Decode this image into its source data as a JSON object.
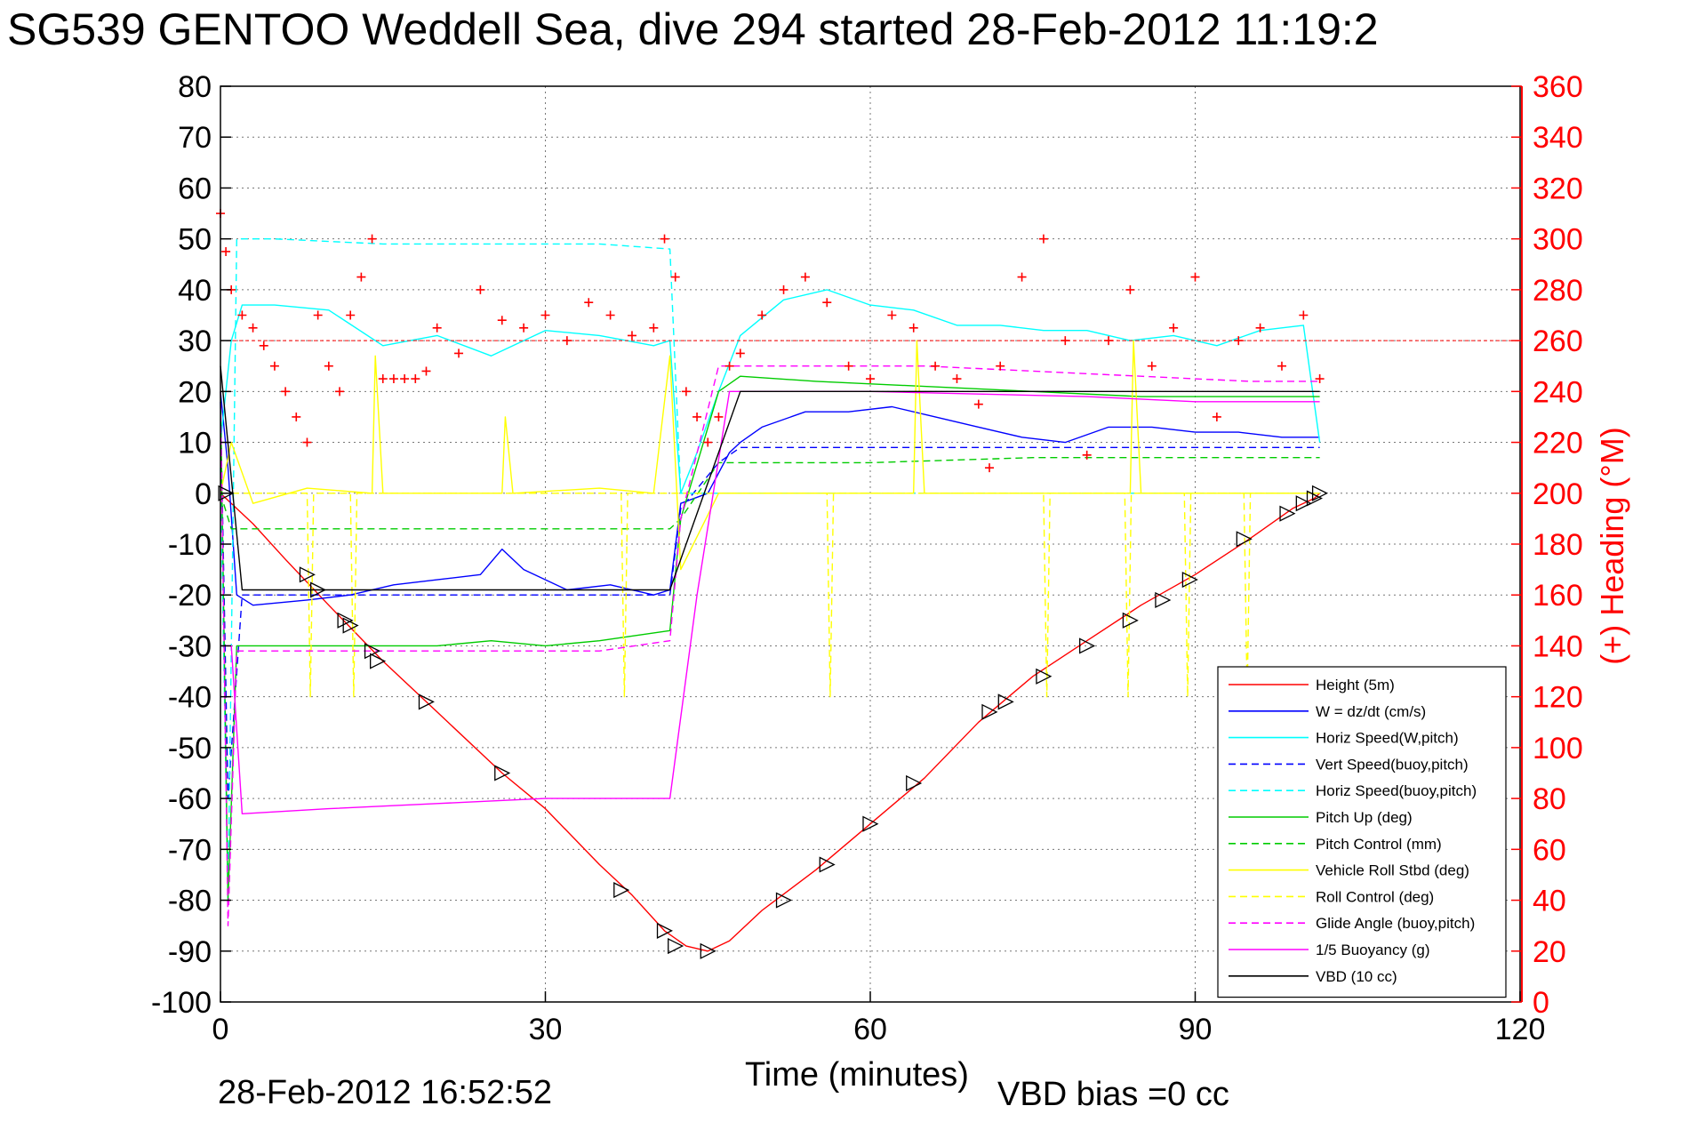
{
  "title": "SG539 GENTOO Weddell Sea, dive 294 started 28-Feb-2012 11:19:2",
  "footer": {
    "date": "28-Feb-2012 16:52:52",
    "vbd_bias": "VBD bias =0 cc"
  },
  "colors": {
    "height": "#ff0000",
    "w": "#0000ff",
    "horiz_speed": "#00ffff",
    "pitch": "#00cc00",
    "roll": "#ffff00",
    "glide": "#ff00ff",
    "vbd": "#000000",
    "heading": "#ff0000"
  },
  "chart_data": {
    "type": "line",
    "title": "SG539 GENTOO Weddell Sea, dive 294 started 28-Feb-2012 11:19:2",
    "xlabel": "Time (minutes)",
    "ylabel": "",
    "y2label": "(+) Heading (°M)",
    "xlim": [
      0,
      120
    ],
    "ylim": [
      -100,
      80
    ],
    "y2lim": [
      0,
      360
    ],
    "xticks": [
      "0",
      "30",
      "60",
      "90",
      "120"
    ],
    "yticks": [
      "80",
      "70",
      "60",
      "50",
      "40",
      "30",
      "20",
      "10",
      "0",
      "-10",
      "-20",
      "-30",
      "-40",
      "-50",
      "-60",
      "-70",
      "-80",
      "-90",
      "-100"
    ],
    "y2ticks": [
      "360",
      "340",
      "320",
      "300",
      "280",
      "260",
      "240",
      "220",
      "200",
      "180",
      "160",
      "140",
      "120",
      "100",
      "80",
      "60",
      "40",
      "20",
      "0"
    ],
    "grid": true,
    "legend_position": "bottom-right",
    "series": [
      {
        "name": "Height (5m)",
        "color": "#ff0000",
        "dash": "solid",
        "x": [
          0,
          3,
          6,
          10,
          15,
          20,
          26,
          30,
          35,
          38,
          41,
          43,
          45,
          47,
          50,
          55,
          60,
          65,
          70,
          75,
          80,
          85,
          90,
          95,
          99,
          101,
          101.5
        ],
        "y": [
          0,
          -6,
          -13,
          -22,
          -33,
          -43,
          -55,
          -62,
          -73,
          -79,
          -86,
          -89,
          -90,
          -88,
          -82,
          -74,
          -65,
          -56,
          -45,
          -36,
          -29,
          -22,
          -16,
          -9,
          -3,
          -1,
          0
        ]
      },
      {
        "name": "W = dz/dt (cm/s)",
        "color": "#0000ff",
        "dash": "solid",
        "x": [
          0,
          0.7,
          1.5,
          3,
          8,
          12,
          16,
          20,
          24,
          26,
          28,
          32,
          36,
          40,
          41.5,
          42.5,
          45,
          47,
          48,
          50,
          54,
          58,
          62,
          66,
          70,
          74,
          78,
          82,
          86,
          90,
          94,
          98,
          101.5
        ],
        "y": [
          20,
          5,
          -20,
          -22,
          -21,
          -20,
          -18,
          -17,
          -16,
          -11,
          -15,
          -19,
          -18,
          -20,
          -19,
          -2,
          0,
          8,
          10,
          13,
          16,
          16,
          17,
          15,
          13,
          11,
          10,
          13,
          13,
          12,
          12,
          11,
          11
        ]
      },
      {
        "name": "Horiz Speed(W,pitch)",
        "color": "#00ffff",
        "dash": "solid",
        "x": [
          0,
          1,
          2,
          5,
          10,
          15,
          20,
          25,
          30,
          35,
          40,
          41.5,
          42.5,
          44,
          46,
          48,
          52,
          56,
          60,
          64,
          68,
          72,
          76,
          80,
          84,
          88,
          92,
          96,
          100,
          101.5
        ],
        "y": [
          10,
          30,
          37,
          37,
          36,
          29,
          31,
          27,
          32,
          31,
          29,
          30,
          0,
          8,
          20,
          31,
          38,
          40,
          37,
          36,
          33,
          33,
          32,
          32,
          30,
          31,
          29,
          32,
          33,
          10
        ]
      },
      {
        "name": "Vert Speed(buoy,pitch)",
        "color": "#0000ff",
        "dash": "dashed",
        "x": [
          0,
          0.7,
          2,
          10,
          20,
          30,
          41.5,
          42.5,
          46,
          48,
          55,
          65,
          75,
          85,
          95,
          101.5
        ],
        "y": [
          18,
          -60,
          -20,
          -20,
          -20,
          -20,
          -20,
          -3,
          6,
          9,
          9,
          9,
          9,
          9,
          9,
          9
        ]
      },
      {
        "name": "Horiz Speed(buoy,pitch)",
        "color": "#00ffff",
        "dash": "dashed",
        "x": [
          0,
          0.7,
          1.5,
          5,
          15,
          25,
          35,
          41.5,
          42.5,
          101.5
        ],
        "y": [
          5,
          -80,
          50,
          50,
          49,
          49,
          49,
          48,
          0,
          0
        ]
      },
      {
        "name": "Pitch Up (deg)",
        "color": "#00cc00",
        "dash": "solid",
        "x": [
          0,
          0.7,
          1.5,
          5,
          10,
          15,
          20,
          25,
          30,
          35,
          41.5,
          42.5,
          46,
          48,
          55,
          65,
          75,
          85,
          95,
          101.5
        ],
        "y": [
          20,
          -80,
          -30,
          -30,
          -30,
          -30,
          -30,
          -29,
          -30,
          -29,
          -27,
          -5,
          20,
          23,
          22,
          21,
          20,
          19,
          19,
          19
        ]
      },
      {
        "name": "Pitch Control (mm)",
        "color": "#00cc00",
        "dash": "dashed",
        "x": [
          0,
          1,
          2,
          10,
          20,
          30,
          40,
          41.5,
          42.5,
          46,
          48,
          60,
          75,
          90,
          101.5
        ],
        "y": [
          0,
          -7,
          -7,
          -7,
          -7,
          -7,
          -7,
          -7,
          -5,
          6,
          6,
          6,
          7,
          7,
          7
        ]
      },
      {
        "name": "Vehicle Roll Stbd (deg)",
        "color": "#ffff00",
        "dash": "solid",
        "x": [
          0,
          1,
          3,
          8,
          14,
          14.3,
          15,
          20,
          26,
          26.3,
          27,
          35,
          40,
          41.5,
          42.5,
          46,
          50,
          60,
          64,
          64.3,
          65,
          80,
          84,
          84.3,
          85,
          90,
          101.5
        ],
        "y": [
          0,
          10,
          -2,
          1,
          0,
          27,
          0,
          0,
          0,
          15,
          0,
          1,
          0,
          27,
          -15,
          0,
          0,
          0,
          0,
          30,
          0,
          0,
          0,
          30,
          0,
          0,
          0
        ]
      },
      {
        "name": "Roll Control (deg)",
        "color": "#ffff00",
        "dash": "dashed",
        "x": [
          0,
          8,
          8.3,
          8.6,
          12,
          12.3,
          12.6,
          18,
          37,
          37.3,
          37.6,
          56,
          56.3,
          56.6,
          76,
          76.3,
          76.6,
          83.5,
          83.8,
          84.1,
          89,
          89.3,
          89.6,
          94.5,
          94.8,
          95.1,
          101.5
        ],
        "y": [
          0,
          0,
          -40,
          0,
          0,
          -40,
          0,
          0,
          0,
          -40,
          0,
          0,
          -40,
          0,
          0,
          -40,
          0,
          0,
          -40,
          0,
          0,
          -40,
          0,
          0,
          -40,
          0,
          0
        ]
      },
      {
        "name": "Glide Angle (buoy,pitch)",
        "color": "#ff00ff",
        "dash": "dashed",
        "x": [
          0,
          0.7,
          1.5,
          5,
          15,
          25,
          35,
          41.5,
          42.5,
          46,
          48,
          55,
          65,
          75,
          85,
          95,
          101.5
        ],
        "y": [
          20,
          -85,
          -31,
          -31,
          -31,
          -31,
          -31,
          -29,
          -5,
          25,
          25,
          25,
          25,
          24,
          23,
          22,
          22
        ]
      },
      {
        "name": "1/5 Buoyancy (g)",
        "color": "#ff00ff",
        "dash": "solid",
        "x": [
          0,
          1,
          2,
          10,
          20,
          30,
          41.5,
          44,
          47,
          50,
          60,
          70,
          80,
          90,
          101.5
        ],
        "y": [
          -30,
          -30,
          -63,
          -62,
          -61,
          -60,
          -60,
          -20,
          20,
          20,
          20,
          19.5,
          19,
          18,
          18
        ]
      },
      {
        "name": "VBD (10 cc)",
        "color": "#000000",
        "dash": "solid",
        "x": [
          0,
          2,
          20,
          41.5,
          48,
          60,
          80,
          101.5
        ],
        "y": [
          25,
          -19,
          -19,
          -19,
          20,
          20,
          20,
          20
        ]
      }
    ],
    "heading": {
      "name": "(+) Heading (°M)",
      "color": "#ff0000",
      "marker": "+",
      "reference": 260,
      "x": [
        0,
        0.5,
        1,
        2,
        3,
        4,
        5,
        6,
        7,
        8,
        9,
        10,
        11,
        12,
        13,
        14,
        15,
        16,
        17,
        18,
        19,
        20,
        22,
        24,
        26,
        28,
        30,
        32,
        34,
        36,
        38,
        40,
        41,
        42,
        43,
        44,
        45,
        46,
        47,
        48,
        50,
        52,
        54,
        56,
        58,
        60,
        62,
        64,
        66,
        68,
        70,
        71,
        72,
        74,
        76,
        78,
        80,
        82,
        84,
        86,
        88,
        90,
        92,
        94,
        96,
        98,
        100,
        101.5
      ],
      "y": [
        310,
        295,
        280,
        270,
        265,
        258,
        250,
        240,
        230,
        220,
        270,
        250,
        240,
        270,
        285,
        300,
        245,
        245,
        245,
        245,
        248,
        265,
        255,
        280,
        268,
        265,
        270,
        260,
        275,
        270,
        262,
        265,
        300,
        285,
        240,
        230,
        220,
        230,
        250,
        255,
        270,
        280,
        285,
        275,
        250,
        245,
        270,
        265,
        250,
        245,
        235,
        210,
        250,
        285,
        300,
        260,
        215,
        260,
        280,
        250,
        265,
        285,
        230,
        260,
        265,
        250,
        270,
        245
      ]
    },
    "markers": {
      "x": [
        0.5,
        8,
        9,
        11.5,
        12,
        14,
        14.5,
        19,
        26,
        37,
        41,
        42,
        45,
        52,
        56,
        60,
        64,
        71,
        72.5,
        76,
        80,
        84,
        87,
        89.5,
        94.5,
        98.5,
        100,
        101,
        101.5
      ],
      "y": [
        0,
        -16,
        -19,
        -25,
        -26,
        -31,
        -33,
        -41,
        -55,
        -78,
        -86,
        -89,
        -90,
        -80,
        -73,
        -65,
        -57,
        -43,
        -41,
        -36,
        -30,
        -25,
        -21,
        -17,
        -9,
        -4,
        -2,
        -1,
        0
      ]
    }
  }
}
